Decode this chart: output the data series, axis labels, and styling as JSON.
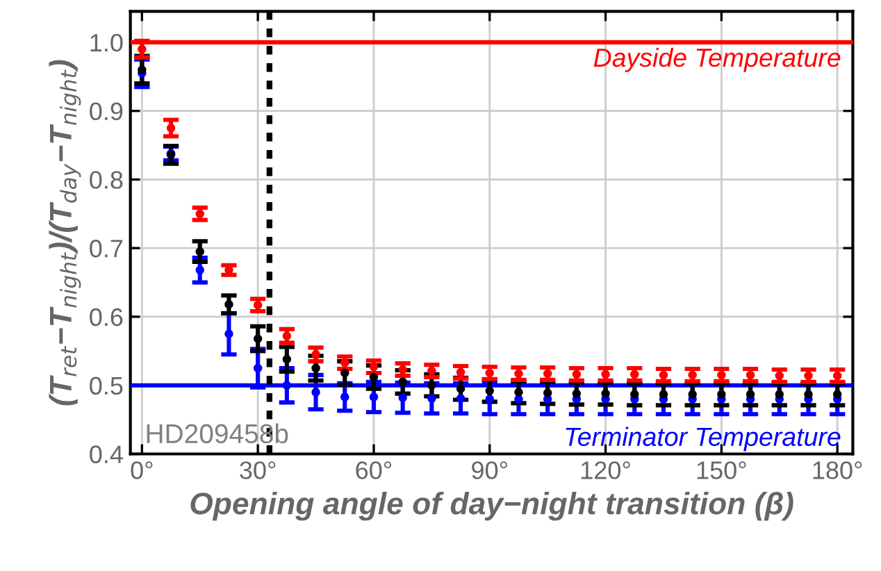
{
  "chart_data": {
    "type": "scatter",
    "xlabel": "Opening angle of day−night transition (β)",
    "ylabel": "(T$_{ret}$−T$_{night}$)/(T$_{day}$−T$_{night}$)",
    "x": [
      0,
      7.5,
      15,
      22.5,
      30,
      37.5,
      45,
      52.5,
      60,
      67.5,
      75,
      82.5,
      90,
      97.5,
      105,
      112.5,
      120,
      127.5,
      135,
      142.5,
      150,
      157.5,
      165,
      172.5,
      180
    ],
    "series": [
      {
        "color": "#ff0000",
        "values": [
          0.99,
          0.875,
          0.75,
          0.668,
          0.617,
          0.572,
          0.545,
          0.533,
          0.527,
          0.523,
          0.521,
          0.519,
          0.518,
          0.517,
          0.517,
          0.516,
          0.516,
          0.516,
          0.515,
          0.515,
          0.515,
          0.515,
          0.514,
          0.514,
          0.514
        ],
        "errors": [
          0.012,
          0.012,
          0.009,
          0.007,
          0.009,
          0.01,
          0.01,
          0.009,
          0.009,
          0.009,
          0.009,
          0.009,
          0.009,
          0.009,
          0.009,
          0.009,
          0.009,
          0.009,
          0.009,
          0.009,
          0.009,
          0.009,
          0.009,
          0.009,
          0.009
        ]
      },
      {
        "color": "#000000",
        "values": [
          0.96,
          0.836,
          0.695,
          0.618,
          0.568,
          0.538,
          0.525,
          0.518,
          0.512,
          0.505,
          0.5,
          0.495,
          0.492,
          0.49,
          0.489,
          0.488,
          0.488,
          0.487,
          0.487,
          0.487,
          0.487,
          0.487,
          0.487,
          0.487,
          0.487
        ],
        "errors": [
          0.02,
          0.013,
          0.015,
          0.013,
          0.018,
          0.018,
          0.018,
          0.017,
          0.017,
          0.017,
          0.016,
          0.016,
          0.016,
          0.016,
          0.016,
          0.016,
          0.016,
          0.016,
          0.016,
          0.016,
          0.016,
          0.016,
          0.016,
          0.016,
          0.016
        ]
      },
      {
        "color": "#0000ff",
        "values": [
          0.955,
          0.838,
          0.668,
          0.575,
          0.525,
          0.5,
          0.49,
          0.483,
          0.483,
          0.482,
          0.481,
          0.481,
          0.48,
          0.48,
          0.48,
          0.48,
          0.48,
          0.48,
          0.48,
          0.48,
          0.48,
          0.48,
          0.48,
          0.48,
          0.48
        ],
        "errors": [
          0.02,
          0.01,
          0.018,
          0.03,
          0.028,
          0.025,
          0.025,
          0.02,
          0.022,
          0.022,
          0.022,
          0.022,
          0.022,
          0.022,
          0.022,
          0.022,
          0.022,
          0.022,
          0.022,
          0.022,
          0.022,
          0.022,
          0.022,
          0.022,
          0.022
        ]
      }
    ],
    "xlim": [
      -3,
      184
    ],
    "ylim": [
      0.4,
      1.045
    ],
    "xticks": [
      {
        "value": 0,
        "label": "0°"
      },
      {
        "value": 30,
        "label": "30°"
      },
      {
        "value": 60,
        "label": "60°"
      },
      {
        "value": 90,
        "label": "90°"
      },
      {
        "value": 120,
        "label": "120°"
      },
      {
        "value": 150,
        "label": "150°"
      },
      {
        "value": 180,
        "label": "180°"
      }
    ],
    "yticks": [
      0.4,
      0.5,
      0.6,
      0.7,
      0.8,
      0.9,
      {
        "value": 1.0,
        "label": "1.0"
      }
    ],
    "ref_lines": [
      {
        "axis": "y",
        "value": 1.0,
        "label": "Dayside Temperature",
        "color": "#ff0000",
        "line_style": "solid"
      },
      {
        "axis": "y",
        "value": 0.5,
        "label": "Terminator Temperature",
        "color": "#0000ff",
        "line_style": "solid"
      },
      {
        "axis": "x",
        "value": 33,
        "color": "#000000",
        "line_style": "dotted"
      }
    ],
    "annotations": [
      "HD209458b"
    ],
    "grid": true,
    "marker": "circle",
    "legend": false
  }
}
